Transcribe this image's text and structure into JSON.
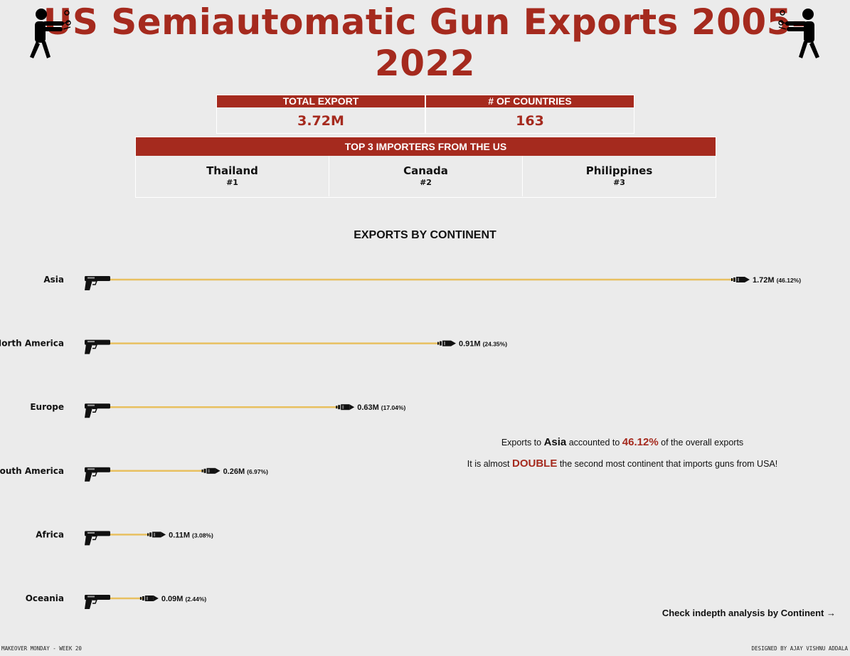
{
  "title": "US Semiautomatic Gun Exports 2005-2022",
  "kpis": {
    "total_export_label": "TOTAL EXPORT",
    "total_export_value": "3.72M",
    "countries_label": "# OF COUNTRIES",
    "countries_value": "163"
  },
  "top3": {
    "header": "TOP 3 IMPORTERS FROM THE US",
    "items": [
      {
        "name": "Thailand",
        "rank": "#1"
      },
      {
        "name": "Canada",
        "rank": "#2"
      },
      {
        "name": "Philippines",
        "rank": "#3"
      }
    ]
  },
  "insight": {
    "line1_pre": "Exports to ",
    "line1_continent": "Asia",
    "line1_mid": " accounted to ",
    "line1_pct": "46.12%",
    "line1_post": " of the overall exports",
    "line2_pre": "It is almost ",
    "line2_highlight": "DOUBLE",
    "line2_post": " the second most continent that imports guns from USA!"
  },
  "cta": "Check indepth analysis by Continent →",
  "footer": {
    "left": "MAKEOVER MONDAY - WEEK 20",
    "right": "DESIGNED BY AJAY VISHNU ADDALA"
  },
  "colors": {
    "accent": "#a52a1e",
    "bar": "#e8c060",
    "background": "#ebebeb"
  },
  "chart_data": {
    "type": "bar",
    "title": "EXPORTS BY CONTINENT",
    "orientation": "horizontal",
    "categories": [
      "Asia",
      "North America",
      "Europe",
      "South America",
      "Africa",
      "Oceania"
    ],
    "values": [
      1.72,
      0.91,
      0.63,
      0.26,
      0.11,
      0.09
    ],
    "labels": [
      "1.72M",
      "0.91M",
      "0.63M",
      "0.26M",
      "0.11M",
      "0.09M"
    ],
    "percent_labels": [
      "(46.12%)",
      "(24.35%)",
      "(17.04%)",
      "(6.97%)",
      "(3.08%)",
      "(2.44%)"
    ],
    "unit": "M",
    "xlim": [
      0,
      1.72
    ]
  }
}
